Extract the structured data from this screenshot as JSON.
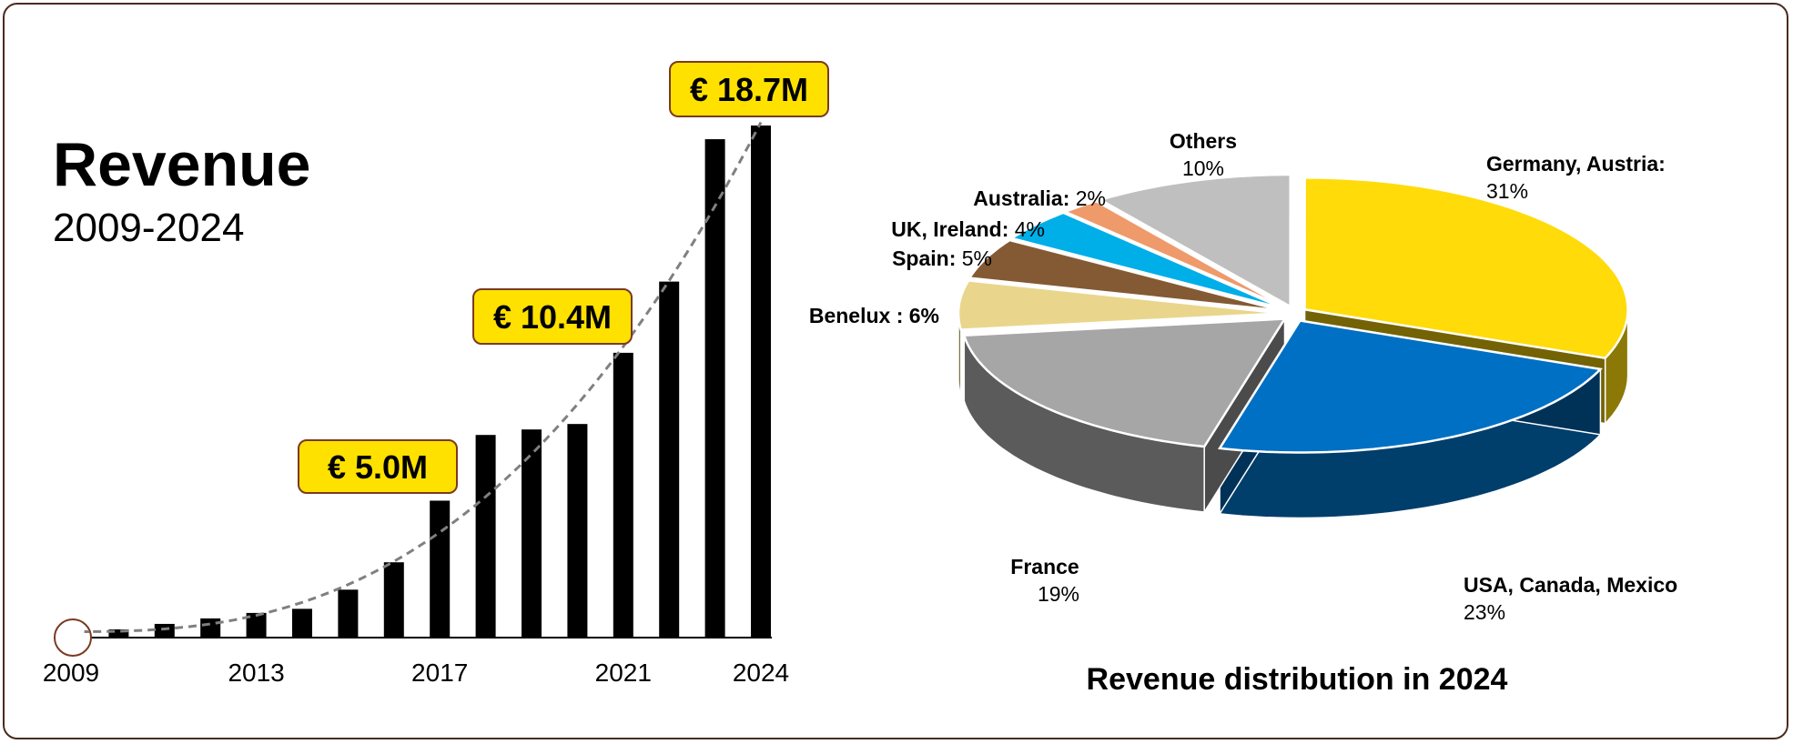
{
  "bar_title": "Revenue",
  "bar_subtitle": "2009-2024",
  "pie_title": "Revenue distribution in 2024",
  "colors": {
    "bar": "#000000",
    "callout_fill": "#ffe100",
    "callout_border": "#7a3a22",
    "trend": "#808080",
    "frame": "#4a2a1e"
  },
  "chart_data": [
    {
      "type": "bar",
      "title": "Revenue",
      "subtitle": "2009-2024",
      "x": [
        2009,
        2010,
        2011,
        2012,
        2013,
        2014,
        2015,
        2016,
        2017,
        2018,
        2019,
        2020,
        2021,
        2022,
        2023,
        2024
      ],
      "values": [
        0.05,
        0.3,
        0.5,
        0.7,
        0.9,
        1.05,
        1.75,
        2.75,
        5.0,
        7.4,
        7.6,
        7.8,
        10.4,
        13.0,
        18.2,
        18.7
      ],
      "ylim": [
        0,
        20
      ],
      "unit": "€ M",
      "tick_labels": [
        "2009",
        "2013",
        "2017",
        "2021",
        "2024"
      ],
      "tick_years": [
        2009,
        2013,
        2017,
        2021,
        2024
      ],
      "callouts": [
        {
          "year": 2016.9,
          "value": 5.0,
          "label": "€ 5.0M"
        },
        {
          "year": 2020.9,
          "value": 10.4,
          "label": "€ 10.4M"
        },
        {
          "year": 2024,
          "value": 18.7,
          "label": "€ 18.7M"
        }
      ],
      "trend_line": "dashed",
      "grid": false,
      "legend": "none"
    },
    {
      "type": "pie",
      "title": "Revenue distribution in 2024",
      "style": "3d-exploded",
      "slices": [
        {
          "name": "Germany, Austria:",
          "value": 31,
          "label": "31%",
          "color": "#ffdb0a"
        },
        {
          "name": "USA, Canada, Mexico",
          "value": 23,
          "label": "23%",
          "color": "#0070c4"
        },
        {
          "name": "France",
          "value": 19,
          "label": "19%",
          "color": "#a6a6a6"
        },
        {
          "name": "Benelux :",
          "value": 6,
          "label": "6%",
          "color": "#e9d68c"
        },
        {
          "name": "Spain:",
          "value": 5,
          "label": "5%",
          "color": "#845a34"
        },
        {
          "name": "UK, Ireland:",
          "value": 4,
          "label": "4%",
          "color": "#00aee8"
        },
        {
          "name": "Australia:",
          "value": 2,
          "label": "2%",
          "color": "#ef9a6a"
        },
        {
          "name": "Others",
          "value": 10,
          "label": "10%",
          "color": "#bfbfbf"
        }
      ],
      "legend": "none"
    }
  ]
}
